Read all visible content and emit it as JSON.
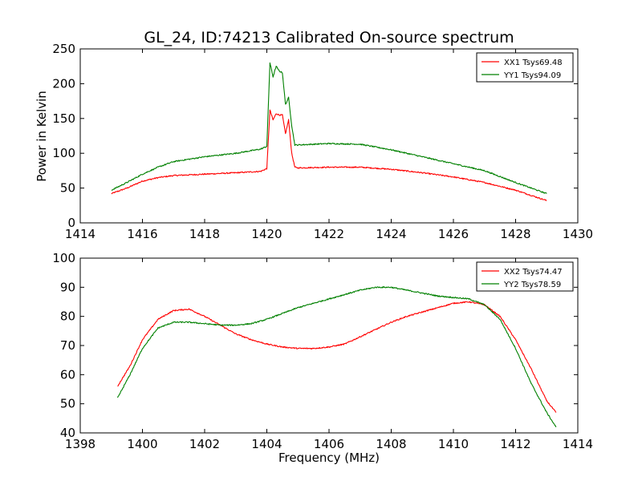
{
  "colors": {
    "xx": "#ff0000",
    "yy": "#008000"
  },
  "chart_data": [
    {
      "type": "line",
      "title": "GL_24, ID:74213 Calibrated On-source spectrum",
      "xlabel": "",
      "ylabel": "Power in Kelvin",
      "xlim": [
        1414,
        1430
      ],
      "ylim": [
        0,
        250
      ],
      "xticks": [
        1414,
        1416,
        1418,
        1420,
        1422,
        1424,
        1426,
        1428,
        1430
      ],
      "yticks": [
        0,
        50,
        100,
        150,
        200,
        250
      ],
      "legend_position": "top-right",
      "series": [
        {
          "name": "XX1 Tsys69.48",
          "color": "#ff0000",
          "x": [
            1415,
            1415.5,
            1416,
            1416.5,
            1417,
            1418,
            1419,
            1419.8,
            1420.0,
            1420.1,
            1420.2,
            1420.3,
            1420.4,
            1420.5,
            1420.6,
            1420.7,
            1420.8,
            1420.9,
            1421.0,
            1422,
            1423,
            1424,
            1425,
            1426,
            1427,
            1428,
            1429
          ],
          "y": [
            42,
            50,
            60,
            65,
            68,
            70,
            72,
            74,
            78,
            162,
            148,
            157,
            155,
            155,
            128,
            148,
            100,
            80,
            79,
            80,
            80,
            77,
            72,
            66,
            58,
            47,
            32
          ]
        },
        {
          "name": "YY1 Tsys94.09",
          "color": "#008000",
          "x": [
            1415,
            1415.5,
            1416,
            1416.5,
            1417,
            1418,
            1419,
            1419.8,
            1420.0,
            1420.1,
            1420.2,
            1420.3,
            1420.4,
            1420.5,
            1420.6,
            1420.7,
            1420.8,
            1420.9,
            1421.0,
            1422,
            1423,
            1424,
            1425,
            1426,
            1427,
            1428,
            1429
          ],
          "y": [
            47,
            58,
            70,
            80,
            88,
            95,
            100,
            106,
            110,
            230,
            210,
            225,
            218,
            216,
            170,
            180,
            140,
            112,
            112,
            114,
            113,
            105,
            95,
            85,
            75,
            58,
            42
          ]
        }
      ]
    },
    {
      "type": "line",
      "title": "",
      "xlabel": "Frequency (MHz)",
      "ylabel": "",
      "xlim": [
        1398,
        1414
      ],
      "ylim": [
        40,
        100
      ],
      "xticks": [
        1398,
        1400,
        1402,
        1404,
        1406,
        1408,
        1410,
        1412,
        1414
      ],
      "yticks": [
        40,
        50,
        60,
        70,
        80,
        90,
        100
      ],
      "legend_position": "top-right",
      "series": [
        {
          "name": "XX2 Tsys74.47",
          "color": "#ff0000",
          "x": [
            1399.2,
            1399.6,
            1400,
            1400.5,
            1401,
            1401.5,
            1402,
            1402.5,
            1403,
            1403.5,
            1404,
            1404.5,
            1405,
            1405.5,
            1406,
            1406.5,
            1407,
            1407.5,
            1408,
            1408.5,
            1409,
            1409.5,
            1410,
            1410.5,
            1411,
            1411.5,
            1412,
            1412.5,
            1413,
            1413.3
          ],
          "y": [
            56,
            63,
            72,
            79,
            82,
            82.5,
            80,
            77,
            74,
            72,
            70.5,
            69.5,
            69,
            69,
            69.5,
            70.5,
            73,
            75.5,
            78,
            80,
            81.5,
            83,
            84.5,
            85,
            84,
            80,
            72,
            62,
            51,
            47
          ]
        },
        {
          "name": "YY2 Tsys78.59",
          "color": "#008000",
          "x": [
            1399.2,
            1399.6,
            1400,
            1400.5,
            1401,
            1401.5,
            1402,
            1402.5,
            1403,
            1403.5,
            1404,
            1404.5,
            1405,
            1405.5,
            1406,
            1406.5,
            1407,
            1407.5,
            1408,
            1408.5,
            1409,
            1409.5,
            1410,
            1410.5,
            1411,
            1411.5,
            1412,
            1412.5,
            1413,
            1413.3
          ],
          "y": [
            52,
            60,
            69,
            76,
            78,
            78,
            77.5,
            77,
            77,
            77.5,
            79,
            81,
            83,
            84.5,
            86,
            87.5,
            89,
            90,
            90,
            89,
            88,
            87,
            86.5,
            86,
            84,
            79,
            69,
            57,
            47,
            42
          ]
        }
      ]
    }
  ]
}
